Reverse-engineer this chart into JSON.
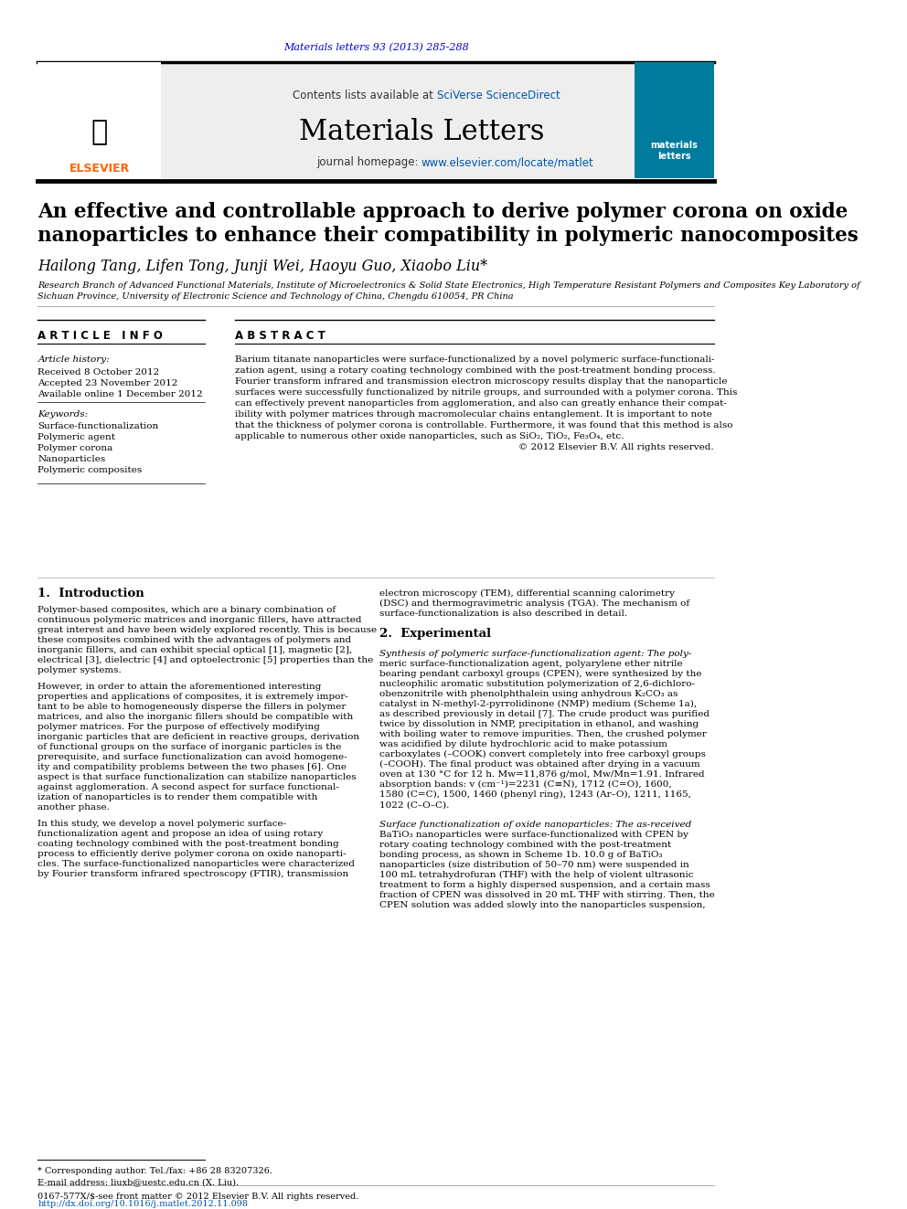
{
  "journal_ref": "Materials letters 93 (2013) 285-288",
  "journal_ref_color": "#0000cc",
  "contents_line": "Contents lists available at ",
  "sciverse_text": "SciVerse ScienceDirect",
  "journal_title": "Materials Letters",
  "homepage_label": "journal homepage: ",
  "homepage_url": "www.elsevier.com/locate/matlet",
  "article_title_line1": "An effective and controllable approach to derive polymer corona on oxide",
  "article_title_line2": "nanoparticles to enhance their compatibility in polymeric nanocomposites",
  "authors": "Hailong Tang, Lifen Tong, Junji Wei, Haoyu Guo, Xiaobo Liu*",
  "affiliation": "Research Branch of Advanced Functional Materials, Institute of Microelectronics & Solid State Electronics, High Temperature Resistant Polymers and Composites Key Laboratory of\nSichuan Province, University of Electronic Science and Technology of China, Chengdu 610054, PR China",
  "article_info_header": "A R T I C L E   I N F O",
  "article_history_label": "Article history:",
  "received": "Received 8 October 2012",
  "accepted": "Accepted 23 November 2012",
  "available": "Available online 1 December 2012",
  "keywords_label": "Keywords:",
  "keywords": [
    "Surface-functionalization",
    "Polymeric agent",
    "Polymer corona",
    "Nanoparticles",
    "Polymeric composites"
  ],
  "abstract_header": "A B S T R A C T",
  "abstract_text": "Barium titanate nanoparticles were surface-functionalized by a novel polymeric surface-functionalization agent, using a rotary coating technology combined with the post-treatment bonding process. Fourier transform infrared and transmission electron microscopy results display that the nanoparticle surfaces were successfully functionalized by nitrile groups, and surrounded with a polymer corona. This can effectively prevent nanoparticles from agglomeration, and also can greatly enhance their compatibility with polymer matrices through macromolecular chains entanglement. It is important to note that the thickness of polymer corona is controllable. Furthermore, it was found that this method is also applicable to numerous other oxide nanoparticles, such as SiO₂, TiO₂, Fe₃O₄, etc.\n© 2012 Elsevier B.V. All rights reserved.",
  "intro_header": "1.  Introduction",
  "intro_text": "Polymer-based composites, which are a binary combination of continuous polymeric matrices and inorganic fillers, have attracted great interest and have been widely explored recently. This is because these composites combined with the advantages of polymers and inorganic fillers, and can exhibit special optical [1], magnetic [2], electrical [3], dielectric [4] and optoelectronic [5] properties than the polymer systems.\n\nHowever, in order to attain the aforementioned interesting properties and applications of composites, it is extremely important to be able to homogeneously disperse the fillers in polymer matrices, and also the inorganic fillers should be compatible with polymer matrices. For the purpose of effectively modifying inorganic particles that are deficient in reactive groups, derivation of functional groups on the surface of inorganic particles is the prerequisite, and surface functionalization can avoid homogeneity and compatibility problems between the two phases [6]. One aspect is that surface functionalization can stabilize nanoparticles against agglomeration. A second aspect for surface functionalization of nanoparticles is to render them compatible with another phase.\n\nIn this study, we develop a novel polymeric surface-functionalization agent and propose an idea of using rotary coating technology combined with the post-treatment bonding process to efficiently derive polymer corona on oxide nanoparticles. The surface-functionalized nanoparticles were characterized by Fourier transform infrared spectroscopy (FTIR), transmission",
  "right_col_text": "electron microscopy (TEM), differential scanning calorimetry (DSC) and thermogravimetric analysis (TGA). The mechanism of surface-functionalization is also described in detail.\n\n2.  Experimental\n\nSynthesis of polymeric surface-functionalization agent: The polymeric surface-functionalization agent, polyarylene ether nitrile bearing pendant carboxyl groups (CPEN), were synthesized by the nucleophilic aromatic substitution polymerization of 2,6-dichlorobenzonitrile with phenolphthalein using anhydrous K₂CO₃ as catalyst in N-methyl-2-pyrrolidinone (NMP) medium (Scheme 1a), as described previously in detail [7]. The crude product was purified twice by dissolution in NMP, precipitation in ethanol, and washing with boiling water to remove impurities. Then, the crushed polymer was acidified by dilute hydrochloric acid to make potassium carboxylates (–COOK) convert completely into free carboxyl groups (–COOH). The final product was obtained after drying in a vacuum oven at 130 °C for 12 h. Mw=11,876 g/mol, Mw/Mn=1.91. Infrared absorption bands: v (cm⁻¹)=2231 (C≡N), 1712 (C=O), 1600, 1580 (C=C), 1500, 1460 (phenyl ring), 1243 (Ar–O), 1211, 1165, 1022 (C–O–C).\n\nSurface functionalization of oxide nanoparticles: The as-received BaTiO₃ nanoparticles were surface-functionalized with CPEN by rotary coating technology combined with the post-treatment bonding process, as shown in Scheme 1b. 10.0 g of BaTiO₃ nanoparticles (size distribution of 50–70 nm) were suspended in 100 mL tetrahydrofuran (THF) with the help of violent ultrasonic treatment to form a highly dispersed suspension, and a certain mass fraction of CPEN was dissolved in 20 mL THF with stirring. Then, the CPEN solution was added slowly into the nanoparticles suspension,",
  "footnote_star": "* Corresponding author. Tel./fax: +86 28 83207326.",
  "footnote_email": "E-mail address: liuxb@uestc.edu.cn (X. Liu).",
  "footer_left": "0167-577X/$-see front matter © 2012 Elsevier B.V. All rights reserved.",
  "footer_doi": "http://dx.doi.org/10.1016/j.matlet.2012.11.098",
  "bg_color": "#ffffff",
  "header_bg": "#f0f0f0",
  "elsevier_orange": "#ff6600",
  "link_color": "#0055aa",
  "dark_teal": "#006b6b",
  "journal_cover_bg": "#007b9e"
}
